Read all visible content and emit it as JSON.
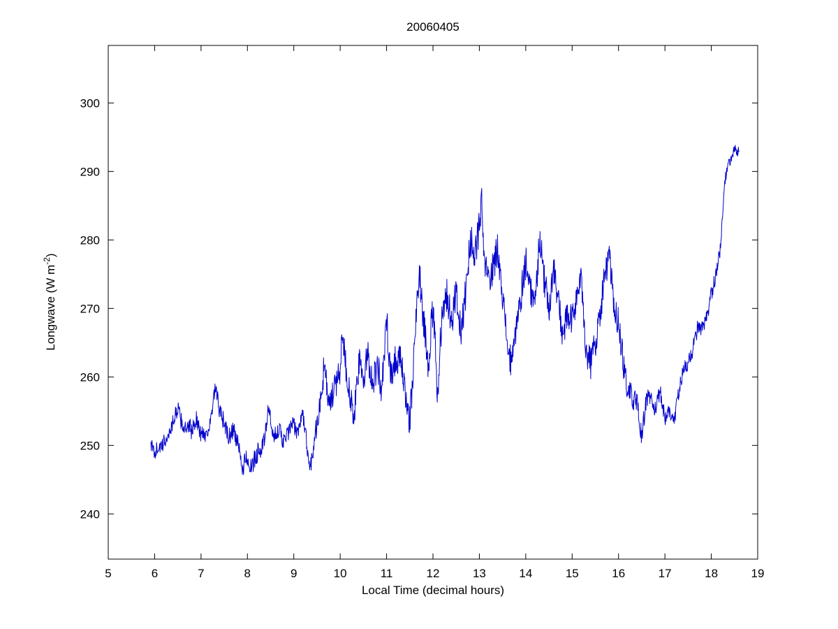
{
  "figure": {
    "background": "#ffffff"
  },
  "chart_data": {
    "type": "line",
    "title": "20060405",
    "xlabel": "Local Time (decimal hours)",
    "ylabel": "Longwave (W m⁻²)",
    "ylabel_parts": {
      "main": "Longwave (W m",
      "sup": "-2",
      "close": ")"
    },
    "xlim": [
      5,
      19
    ],
    "ylim": [
      233.4,
      308.4
    ],
    "xticks": [
      5,
      6,
      7,
      8,
      9,
      10,
      11,
      12,
      13,
      14,
      15,
      16,
      17,
      18,
      19
    ],
    "yticks": [
      240,
      250,
      260,
      270,
      280,
      290,
      300
    ],
    "grid": false,
    "legend_position": "none",
    "line_color": "#0000CC",
    "axis_color": "#000000",
    "noise_profile": [
      [
        5.92,
        1.1
      ],
      [
        8.0,
        1.4
      ],
      [
        9.3,
        1.2
      ],
      [
        9.6,
        2.2
      ],
      [
        11.5,
        2.6
      ],
      [
        14.0,
        2.5
      ],
      [
        16.0,
        2.2
      ],
      [
        16.6,
        1.4
      ],
      [
        17.3,
        1.1
      ],
      [
        18.0,
        1.2
      ],
      [
        18.25,
        0.9
      ],
      [
        18.62,
        0.7
      ]
    ],
    "points": [
      [
        5.92,
        250.5
      ],
      [
        5.95,
        249.5
      ],
      [
        6.0,
        249.0
      ],
      [
        6.05,
        249.5
      ],
      [
        6.1,
        250.0
      ],
      [
        6.15,
        249.5
      ],
      [
        6.2,
        250.5
      ],
      [
        6.3,
        251.5
      ],
      [
        6.4,
        253.5
      ],
      [
        6.45,
        254.5
      ],
      [
        6.5,
        255.5
      ],
      [
        6.55,
        254.0
      ],
      [
        6.6,
        253.0
      ],
      [
        6.7,
        252.0
      ],
      [
        6.75,
        253.0
      ],
      [
        6.8,
        252.0
      ],
      [
        6.9,
        254.0
      ],
      [
        6.95,
        252.5
      ],
      [
        7.0,
        251.5
      ],
      [
        7.05,
        252.0
      ],
      [
        7.1,
        251.5
      ],
      [
        7.15,
        252.5
      ],
      [
        7.2,
        253.0
      ],
      [
        7.25,
        255.5
      ],
      [
        7.3,
        258.0
      ],
      [
        7.35,
        257.0
      ],
      [
        7.4,
        255.0
      ],
      [
        7.45,
        254.0
      ],
      [
        7.5,
        253.5
      ],
      [
        7.55,
        252.0
      ],
      [
        7.6,
        251.0
      ],
      [
        7.7,
        252.5
      ],
      [
        7.75,
        251.0
      ],
      [
        7.8,
        250.0
      ],
      [
        7.85,
        248.0
      ],
      [
        7.9,
        246.5
      ],
      [
        7.95,
        248.0
      ],
      [
        8.0,
        248.5
      ],
      [
        8.05,
        247.0
      ],
      [
        8.1,
        246.5
      ],
      [
        8.15,
        248.0
      ],
      [
        8.2,
        248.5
      ],
      [
        8.25,
        250.0
      ],
      [
        8.3,
        249.0
      ],
      [
        8.35,
        250.5
      ],
      [
        8.4,
        252.0
      ],
      [
        8.45,
        256.0
      ],
      [
        8.5,
        253.5
      ],
      [
        8.55,
        251.0
      ],
      [
        8.6,
        251.5
      ],
      [
        8.65,
        252.5
      ],
      [
        8.7,
        252.0
      ],
      [
        8.75,
        251.0
      ],
      [
        8.8,
        250.5
      ],
      [
        8.85,
        251.5
      ],
      [
        8.9,
        252.0
      ],
      [
        8.95,
        253.0
      ],
      [
        9.0,
        253.0
      ],
      [
        9.05,
        252.0
      ],
      [
        9.1,
        252.5
      ],
      [
        9.15,
        253.5
      ],
      [
        9.2,
        254.5
      ],
      [
        9.25,
        252.0
      ],
      [
        9.3,
        249.0
      ],
      [
        9.35,
        246.5
      ],
      [
        9.4,
        249.0
      ],
      [
        9.45,
        251.0
      ],
      [
        9.5,
        253.5
      ],
      [
        9.55,
        255.0
      ],
      [
        9.6,
        257.5
      ],
      [
        9.65,
        261.5
      ],
      [
        9.7,
        259.0
      ],
      [
        9.75,
        256.5
      ],
      [
        9.8,
        256.0
      ],
      [
        9.85,
        257.5
      ],
      [
        9.9,
        259.0
      ],
      [
        9.95,
        260.0
      ],
      [
        10.0,
        261.0
      ],
      [
        10.05,
        267.5
      ],
      [
        10.1,
        263.0
      ],
      [
        10.15,
        260.0
      ],
      [
        10.2,
        258.0
      ],
      [
        10.25,
        255.5
      ],
      [
        10.3,
        253.5
      ],
      [
        10.35,
        258.0
      ],
      [
        10.4,
        262.0
      ],
      [
        10.45,
        261.0
      ],
      [
        10.5,
        259.5
      ],
      [
        10.55,
        261.5
      ],
      [
        10.6,
        263.5
      ],
      [
        10.65,
        261.0
      ],
      [
        10.7,
        259.0
      ],
      [
        10.75,
        260.5
      ],
      [
        10.8,
        262.0
      ],
      [
        10.85,
        260.0
      ],
      [
        10.9,
        258.0
      ],
      [
        10.95,
        263.0
      ],
      [
        11.0,
        268.5
      ],
      [
        11.05,
        264.0
      ],
      [
        11.1,
        260.0
      ],
      [
        11.15,
        261.5
      ],
      [
        11.2,
        263.0
      ],
      [
        11.25,
        262.5
      ],
      [
        11.3,
        262.0
      ],
      [
        11.35,
        260.0
      ],
      [
        11.4,
        258.0
      ],
      [
        11.45,
        256.0
      ],
      [
        11.5,
        253.5
      ],
      [
        11.55,
        258.0
      ],
      [
        11.6,
        264.0
      ],
      [
        11.65,
        270.0
      ],
      [
        11.7,
        276.0
      ],
      [
        11.75,
        272.0
      ],
      [
        11.8,
        268.0
      ],
      [
        11.85,
        265.0
      ],
      [
        11.9,
        262.0
      ],
      [
        11.95,
        266.0
      ],
      [
        12.0,
        270.0
      ],
      [
        12.05,
        264.0
      ],
      [
        12.1,
        257.5
      ],
      [
        12.15,
        264.0
      ],
      [
        12.2,
        270.0
      ],
      [
        12.25,
        271.0
      ],
      [
        12.3,
        272.0
      ],
      [
        12.35,
        270.0
      ],
      [
        12.4,
        268.0
      ],
      [
        12.45,
        270.5
      ],
      [
        12.5,
        273.0
      ],
      [
        12.55,
        269.5
      ],
      [
        12.6,
        266.0
      ],
      [
        12.65,
        269.0
      ],
      [
        12.7,
        272.0
      ],
      [
        12.75,
        276.0
      ],
      [
        12.8,
        280.0
      ],
      [
        12.85,
        279.0
      ],
      [
        12.9,
        278.0
      ],
      [
        12.95,
        280.0
      ],
      [
        13.0,
        282.0
      ],
      [
        13.05,
        285.0
      ],
      [
        13.1,
        277.0
      ],
      [
        13.15,
        275.5
      ],
      [
        13.2,
        274.0
      ],
      [
        13.25,
        275.0
      ],
      [
        13.3,
        276.0
      ],
      [
        13.35,
        277.5
      ],
      [
        13.4,
        279.0
      ],
      [
        13.45,
        275.5
      ],
      [
        13.5,
        272.0
      ],
      [
        13.55,
        268.5
      ],
      [
        13.6,
        265.0
      ],
      [
        13.65,
        263.0
      ],
      [
        13.7,
        261.0
      ],
      [
        13.75,
        264.5
      ],
      [
        13.8,
        268.0
      ],
      [
        13.85,
        270.0
      ],
      [
        13.9,
        272.0
      ],
      [
        13.95,
        274.5
      ],
      [
        14.0,
        277.0
      ],
      [
        14.05,
        275.0
      ],
      [
        14.1,
        273.0
      ],
      [
        14.15,
        271.5
      ],
      [
        14.2,
        270.0
      ],
      [
        14.25,
        275.5
      ],
      [
        14.3,
        281.0
      ],
      [
        14.35,
        277.5
      ],
      [
        14.4,
        274.0
      ],
      [
        14.45,
        272.0
      ],
      [
        14.5,
        270.0
      ],
      [
        14.55,
        273.0
      ],
      [
        14.6,
        276.0
      ],
      [
        14.65,
        273.5
      ],
      [
        14.7,
        271.0
      ],
      [
        14.75,
        268.5
      ],
      [
        14.8,
        266.0
      ],
      [
        14.85,
        267.5
      ],
      [
        14.9,
        269.0
      ],
      [
        14.95,
        268.5
      ],
      [
        15.0,
        268.0
      ],
      [
        15.05,
        270.0
      ],
      [
        15.1,
        272.0
      ],
      [
        15.15,
        273.0
      ],
      [
        15.2,
        274.0
      ],
      [
        15.25,
        269.0
      ],
      [
        15.3,
        264.0
      ],
      [
        15.35,
        263.0
      ],
      [
        15.4,
        262.0
      ],
      [
        15.45,
        263.5
      ],
      [
        15.5,
        265.0
      ],
      [
        15.55,
        267.0
      ],
      [
        15.6,
        269.0
      ],
      [
        15.65,
        272.0
      ],
      [
        15.7,
        275.0
      ],
      [
        15.75,
        276.0
      ],
      [
        15.8,
        277.5
      ],
      [
        15.85,
        274.0
      ],
      [
        15.9,
        270.0
      ],
      [
        15.95,
        269.0
      ],
      [
        16.0,
        268.0
      ],
      [
        16.05,
        265.0
      ],
      [
        16.1,
        262.0
      ],
      [
        16.15,
        260.0
      ],
      [
        16.2,
        258.0
      ],
      [
        16.25,
        257.5
      ],
      [
        16.3,
        257.0
      ],
      [
        16.35,
        256.5
      ],
      [
        16.4,
        256.0
      ],
      [
        16.45,
        253.5
      ],
      [
        16.5,
        251.0
      ],
      [
        16.55,
        254.0
      ],
      [
        16.6,
        257.0
      ],
      [
        16.65,
        257.0
      ],
      [
        16.7,
        257.0
      ],
      [
        16.75,
        256.0
      ],
      [
        16.8,
        255.0
      ],
      [
        16.85,
        256.5
      ],
      [
        16.9,
        258.0
      ],
      [
        16.95,
        256.0
      ],
      [
        17.0,
        254.0
      ],
      [
        17.05,
        254.5
      ],
      [
        17.1,
        255.0
      ],
      [
        17.15,
        254.0
      ],
      [
        17.2,
        253.5
      ],
      [
        17.25,
        256.0
      ],
      [
        17.3,
        258.0
      ],
      [
        17.35,
        259.5
      ],
      [
        17.4,
        261.0
      ],
      [
        17.45,
        261.5
      ],
      [
        17.5,
        262.0
      ],
      [
        17.55,
        263.0
      ],
      [
        17.6,
        264.0
      ],
      [
        17.65,
        265.5
      ],
      [
        17.7,
        267.0
      ],
      [
        17.75,
        267.0
      ],
      [
        17.8,
        267.0
      ],
      [
        17.85,
        267.5
      ],
      [
        17.9,
        268.5
      ],
      [
        17.95,
        270.0
      ],
      [
        18.0,
        272.0
      ],
      [
        18.05,
        273.5
      ],
      [
        18.1,
        275.0
      ],
      [
        18.15,
        277.0
      ],
      [
        18.2,
        279.0
      ],
      [
        18.25,
        284.0
      ],
      [
        18.3,
        289.0
      ],
      [
        18.35,
        290.5
      ],
      [
        18.4,
        291.5
      ],
      [
        18.45,
        292.0
      ],
      [
        18.5,
        293.5
      ],
      [
        18.55,
        292.5
      ],
      [
        18.6,
        293.0
      ]
    ]
  }
}
